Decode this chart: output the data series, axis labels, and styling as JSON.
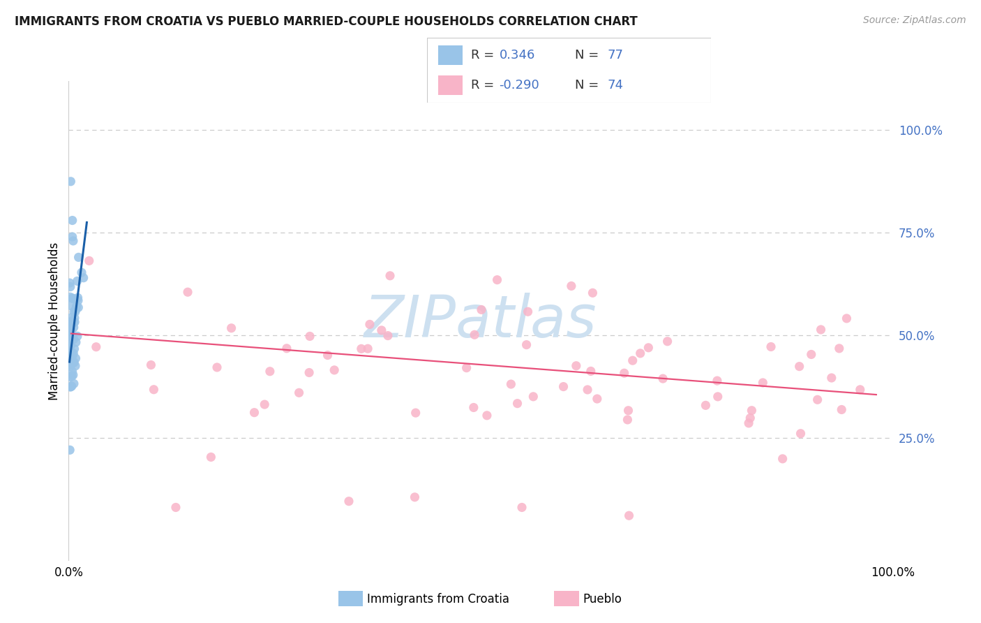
{
  "title": "IMMIGRANTS FROM CROATIA VS PUEBLO MARRIED-COUPLE HOUSEHOLDS CORRELATION CHART",
  "source": "Source: ZipAtlas.com",
  "ylabel": "Married-couple Households",
  "xlim": [
    0,
    1
  ],
  "ylim": [
    -0.05,
    1.12
  ],
  "ytick_labels": [
    "25.0%",
    "50.0%",
    "75.0%",
    "100.0%"
  ],
  "ytick_values": [
    0.25,
    0.5,
    0.75,
    1.0
  ],
  "right_label_color": "#4472c4",
  "blue_color": "#99c4e8",
  "pink_color": "#f8b4c8",
  "blue_line_color": "#1a5fa8",
  "pink_line_color": "#e8507a",
  "watermark_color": "#cde0f0",
  "bg_color": "#ffffff",
  "grid_color": "#cccccc",
  "title_fontsize": 12,
  "source_fontsize": 10,
  "legend_text_color": "#4472c4",
  "legend_label_color": "#333333"
}
